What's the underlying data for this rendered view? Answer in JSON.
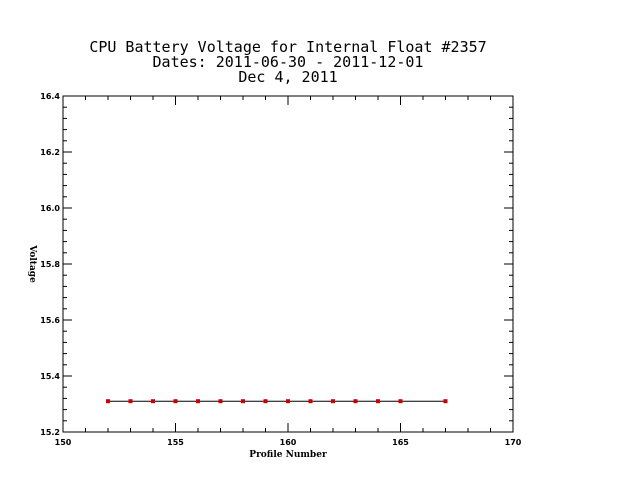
{
  "chart_data": {
    "type": "line",
    "title_lines": [
      "CPU Battery Voltage for Internal Float #2357",
      "Dates:  2011-06-30 -  2011-12-01",
      "Dec  4, 2011"
    ],
    "xlabel": "Profile Number",
    "ylabel": "Voltage",
    "xlim": [
      150,
      170
    ],
    "ylim": [
      15.2,
      16.4
    ],
    "x_ticks": [
      150,
      155,
      160,
      165,
      170
    ],
    "x_tick_labels": [
      "150",
      "155",
      "160",
      "165",
      "170"
    ],
    "y_ticks": [
      15.2,
      15.4,
      15.6,
      15.8,
      16.0,
      16.2,
      16.4
    ],
    "y_tick_labels": [
      "15.2",
      "15.4",
      "15.6",
      "15.8",
      "16.0",
      "16.2",
      "16.4"
    ],
    "x_minor_step": 1,
    "y_minor_step": 0.04,
    "grid": false,
    "legend": "none",
    "line_color": "#000000",
    "marker_color": "#cc0000",
    "x": [
      152,
      153,
      154,
      155,
      156,
      157,
      158,
      159,
      160,
      161,
      162,
      163,
      164,
      165,
      167
    ],
    "y": [
      15.31,
      15.31,
      15.31,
      15.31,
      15.31,
      15.31,
      15.31,
      15.31,
      15.31,
      15.31,
      15.31,
      15.31,
      15.31,
      15.31,
      15.31
    ]
  }
}
